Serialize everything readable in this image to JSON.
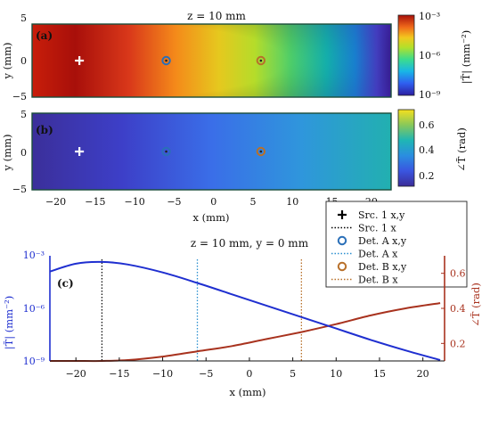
{
  "panel_a": {
    "title": "z = 10 mm",
    "label": "(a)",
    "ylabel": "y (mm)",
    "yticks": [
      "5",
      "0",
      "−5"
    ],
    "colorbar_ticks": [
      "10⁻³",
      "10⁻⁶",
      "10⁻⁹"
    ],
    "colorbar_label": "|T̃| (mm⁻²)"
  },
  "panel_b": {
    "label": "(b)",
    "ylabel": "y (mm)",
    "yticks": [
      "5",
      "0",
      "−5"
    ],
    "colorbar_ticks": [
      "0.6",
      "0.4",
      "0.2"
    ],
    "colorbar_label": "∠T̃ (rad)"
  },
  "map_xticks": [
    "−20",
    "−15",
    "−10",
    "−5",
    "0",
    "5",
    "10",
    "15",
    "20"
  ],
  "map_xlabel": "x (mm)",
  "legend": {
    "entries": [
      {
        "marker": "+",
        "label": "Src. 1 x,y",
        "color": "#000000"
      },
      {
        "marker": "dot-line",
        "label": "Src. 1 x",
        "color": "#000000"
      },
      {
        "marker": "circle",
        "label": "Det. A x,y",
        "color": "#2a6fb8"
      },
      {
        "marker": "dot-line",
        "label": "Det. A x",
        "color": "#2a8fcf"
      },
      {
        "marker": "circle",
        "label": "Det. B x,y",
        "color": "#b8702a"
      },
      {
        "marker": "dot-line",
        "label": "Det. B x",
        "color": "#b8702a"
      }
    ]
  },
  "panel_c": {
    "title": "z = 10 mm, y = 0 mm",
    "label": "(c)",
    "xlabel": "x (mm)",
    "xticks": [
      "−20",
      "−15",
      "−10",
      "−5",
      "0",
      "5",
      "10",
      "15",
      "20"
    ],
    "left_ylabel": "|T̃| (mm⁻²)",
    "left_yticks": [
      "10⁻³",
      "10⁻⁶",
      "10⁻⁹"
    ],
    "right_ylabel": "∠T̃ (rad)",
    "right_yticks": [
      "0.6",
      "0.4",
      "0.2"
    ]
  },
  "colors": {
    "amplitude": "#1f2fd0",
    "phase": "#a8321e",
    "map_border": "#1a4d3a"
  },
  "chart_data": {
    "type": "line",
    "x_range": [
      -23,
      22.5
    ],
    "sources": [
      {
        "name": "Src. 1",
        "x": -17,
        "y": 0
      }
    ],
    "detectors": [
      {
        "name": "Det. A",
        "x": -6,
        "y": 0
      },
      {
        "name": "Det. B",
        "x": 6,
        "y": 0
      }
    ],
    "amplitude_log10": {
      "ylim": [
        -9,
        -3
      ],
      "x": [
        -23,
        -20,
        -17,
        -14,
        -10,
        -6,
        -2,
        2,
        6,
        10,
        14,
        18,
        22
      ],
      "values": [
        -3.9,
        -3.45,
        -3.35,
        -3.5,
        -3.95,
        -4.55,
        -5.2,
        -5.85,
        -6.5,
        -7.15,
        -7.8,
        -8.4,
        -8.95
      ]
    },
    "phase": {
      "ylim": [
        0.1,
        0.7
      ],
      "x": [
        -23,
        -20,
        -17,
        -14,
        -10,
        -6,
        -2,
        2,
        6,
        10,
        14,
        18,
        22
      ],
      "values": [
        0.1,
        0.1,
        0.1,
        0.105,
        0.125,
        0.155,
        0.185,
        0.225,
        0.265,
        0.31,
        0.36,
        0.4,
        0.43
      ]
    },
    "amplitude_map": {
      "colorbar_log10_range": [
        -9,
        -3
      ]
    },
    "phase_map": {
      "colorbar_range": [
        0.1,
        0.7
      ]
    }
  }
}
